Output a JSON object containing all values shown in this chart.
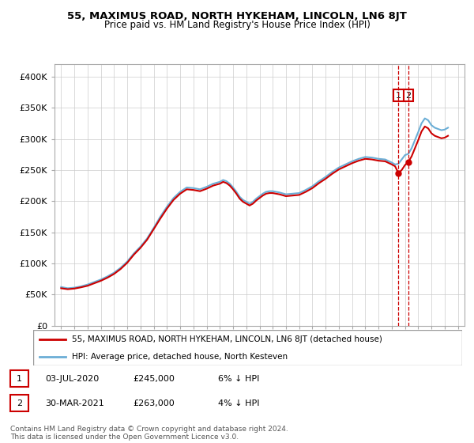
{
  "title": "55, MAXIMUS ROAD, NORTH HYKEHAM, LINCOLN, LN6 8JT",
  "subtitle": "Price paid vs. HM Land Registry's House Price Index (HPI)",
  "legend_label1": "55, MAXIMUS ROAD, NORTH HYKEHAM, LINCOLN, LN6 8JT (detached house)",
  "legend_label2": "HPI: Average price, detached house, North Kesteven",
  "annotation1_num": "1",
  "annotation1_date": "03-JUL-2020",
  "annotation1_price": "£245,000",
  "annotation1_note": "6% ↓ HPI",
  "annotation2_num": "2",
  "annotation2_date": "30-MAR-2021",
  "annotation2_price": "£263,000",
  "annotation2_note": "4% ↓ HPI",
  "footer": "Contains HM Land Registry data © Crown copyright and database right 2024.\nThis data is licensed under the Open Government Licence v3.0.",
  "sale1_x": 2020.5,
  "sale1_y": 245000,
  "sale2_x": 2021.25,
  "sale2_y": 263000,
  "ylim_min": 0,
  "ylim_max": 420000,
  "xlim_min": 1994.5,
  "xlim_max": 2025.5,
  "hpi_color": "#6baed6",
  "price_color": "#cc0000",
  "vline_color": "#cc0000",
  "background_color": "#ffffff",
  "yticks": [
    0,
    50000,
    100000,
    150000,
    200000,
    250000,
    300000,
    350000,
    400000
  ],
  "ytick_labels": [
    "£0",
    "£50K",
    "£100K",
    "£150K",
    "£200K",
    "£250K",
    "£300K",
    "£350K",
    "£400K"
  ],
  "xticks": [
    1995,
    1996,
    1997,
    1998,
    1999,
    2000,
    2001,
    2002,
    2003,
    2004,
    2005,
    2006,
    2007,
    2008,
    2009,
    2010,
    2011,
    2012,
    2013,
    2014,
    2015,
    2016,
    2017,
    2018,
    2019,
    2020,
    2021,
    2022,
    2023,
    2024,
    2025
  ]
}
